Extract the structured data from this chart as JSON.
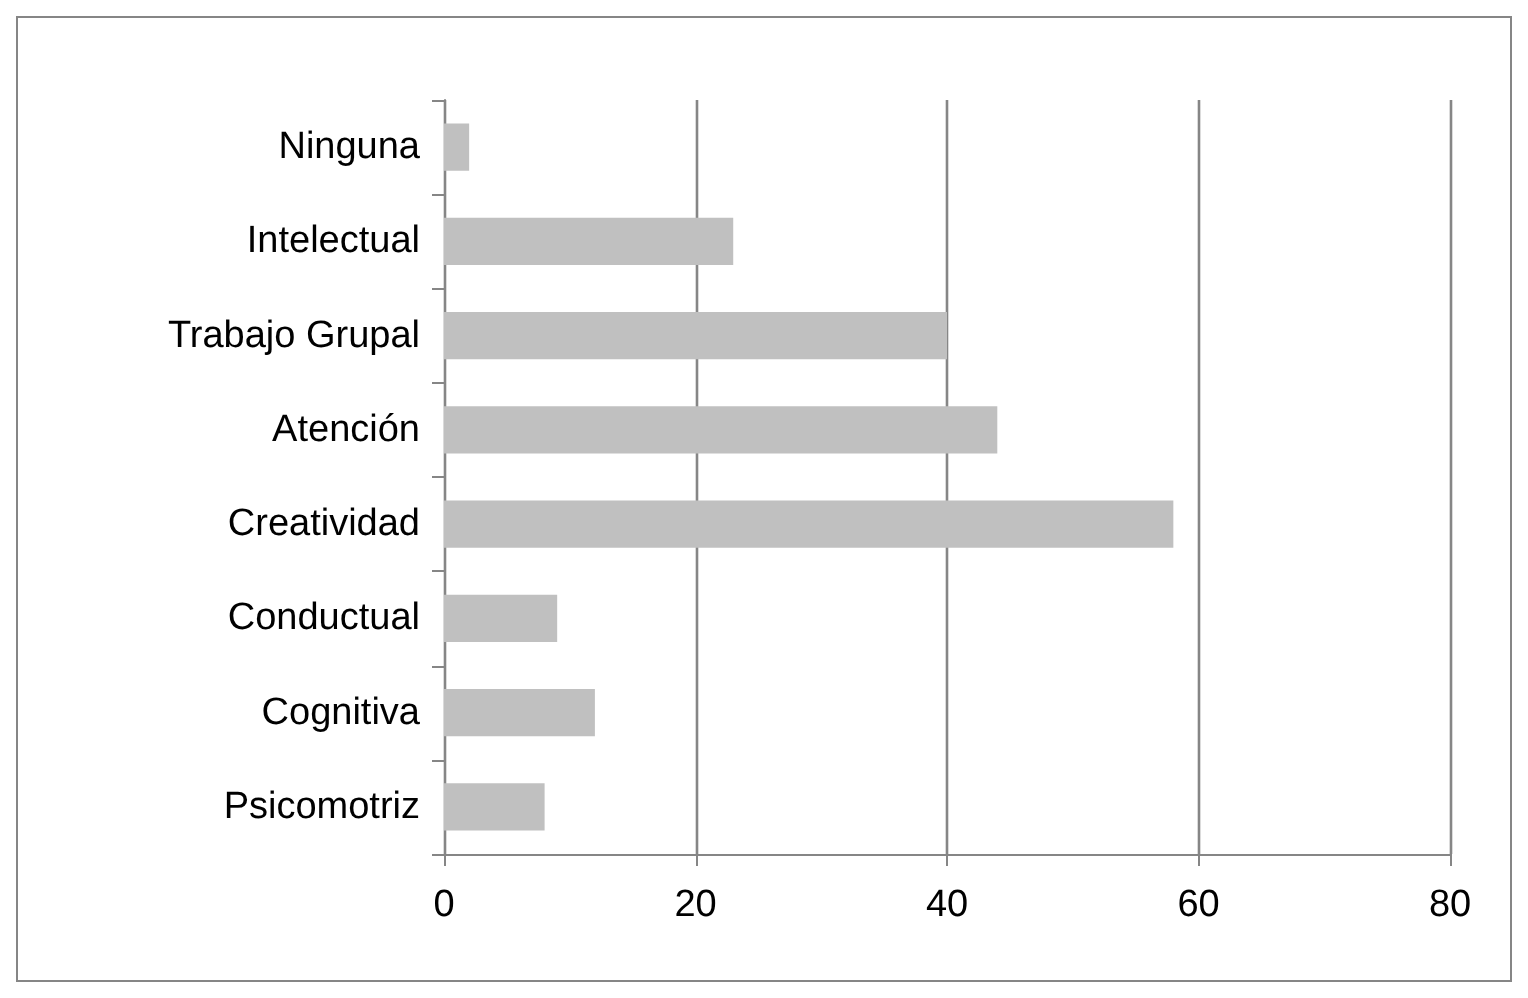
{
  "chart_data": {
    "type": "bar",
    "orientation": "horizontal",
    "categories": [
      "Ninguna",
      "Intelectual",
      "Trabajo Grupal",
      "Atención",
      "Creatividad",
      "Conductual",
      "Cognitiva",
      "Psicomotriz"
    ],
    "values": [
      2,
      23,
      40,
      44,
      58,
      9,
      12,
      8
    ],
    "color": "#c0c0c0",
    "xlim": [
      0,
      80
    ],
    "xticks": [
      0,
      20,
      40,
      60,
      80
    ],
    "grid": "x"
  }
}
